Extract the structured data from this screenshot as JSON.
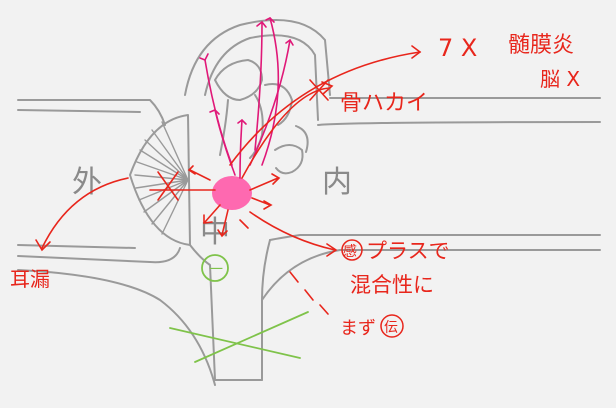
{
  "labels": {
    "outer": "外",
    "middle": "中",
    "inner": "内",
    "circled_one": "一",
    "bone_destruction": "骨ハカイ",
    "seven_x": "7 X",
    "meningitis": "髄膜炎",
    "brain_x": "脳 X",
    "otorrhea": "耳漏",
    "plus_prefix": "感",
    "plus": "プラスで",
    "mixed": "混合性に",
    "mazu": "まず",
    "conductive": "伝"
  },
  "colors": {
    "outline": "#9a9a9a",
    "red": "#e8261c",
    "magenta": "#e01878",
    "pink_fill": "#ff5aa8",
    "green": "#7fc34a",
    "grey_text": "#8a8a8a"
  }
}
